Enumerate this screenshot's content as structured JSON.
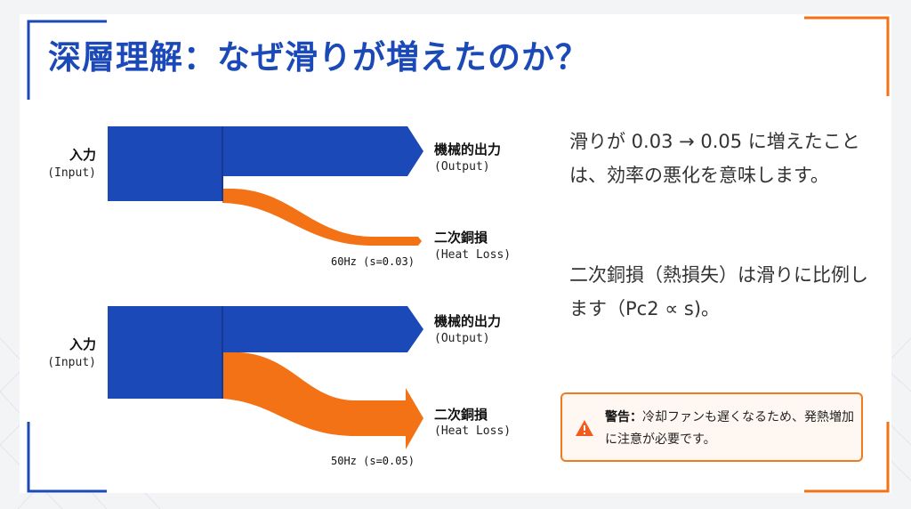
{
  "slide": {
    "title": "深層理解：なぜ滑りが増えたのか？",
    "colors": {
      "accent_blue": "#1b49b7",
      "accent_orange": "#f47216"
    }
  },
  "diagrams": [
    {
      "input_label": "入力",
      "input_sublabel": "(Input)",
      "output_label": "機械的出力",
      "output_sublabel": "(Output)",
      "loss_label": "二次銅損",
      "loss_sublabel": "(Heat Loss)",
      "caption": "60Hz (s=0.03)",
      "slip": 0.03
    },
    {
      "input_label": "入力",
      "input_sublabel": "(Input)",
      "output_label": "機械的出力",
      "output_sublabel": "(Output)",
      "loss_label": "二次銅損",
      "loss_sublabel": "(Heat Loss)",
      "caption": "50Hz (s=0.05)",
      "slip": 0.05
    }
  ],
  "explanation": {
    "paragraph1": "滑りが 0.03 → 0.05 に増えたことは、効率の悪化を意味します。",
    "paragraph2": "二次銅損（熱損失）は滑りに比例します（Pc2 ∝ s)。"
  },
  "warning": {
    "icon": "warning-triangle-icon",
    "label": "警告：",
    "text": "冷却ファンも遅くなるため、発熱増加に注意が必要です。"
  }
}
